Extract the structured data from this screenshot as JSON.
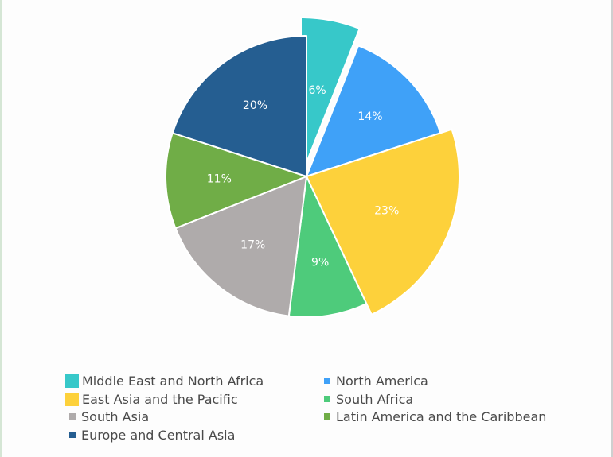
{
  "chart_data": {
    "type": "pie",
    "title": "",
    "start_angle_deg": 0,
    "direction": "clockwise",
    "categories": [
      "Middle East and North Africa",
      "North America",
      "East Asia and the Pacific",
      "South Africa",
      "South Asia",
      "Latin America and the Caribbean",
      "Europe and Central Asia"
    ],
    "values": [
      6,
      14,
      23,
      9,
      17,
      11,
      20
    ],
    "labels": [
      "6%",
      "14%",
      "23%",
      "9%",
      "17%",
      "11%",
      "20%"
    ],
    "colors": [
      "#37c8c9",
      "#3fa1f8",
      "#fdd13b",
      "#4ecb7b",
      "#afabab",
      "#70ad47",
      "#255e91"
    ],
    "exploded": [
      "Middle East and North Africa",
      "East Asia and the Pacific"
    ],
    "legend_position": "bottom"
  },
  "legend": {
    "items": [
      {
        "label": "Middle East and North Africa",
        "color": "#37c8c9",
        "size": "big"
      },
      {
        "label": "North America",
        "color": "#3fa1f8",
        "size": "small"
      },
      {
        "label": "East Asia and the Pacific",
        "color": "#fdd13b",
        "size": "big"
      },
      {
        "label": "South Africa",
        "color": "#4ecb7b",
        "size": "small"
      },
      {
        "label": "South Asia",
        "color": "#afabab",
        "size": "small"
      },
      {
        "label": "Latin America and the Caribbean",
        "color": "#70ad47",
        "size": "small"
      },
      {
        "label": "Europe and Central Asia",
        "color": "#255e91",
        "size": "small"
      }
    ]
  }
}
